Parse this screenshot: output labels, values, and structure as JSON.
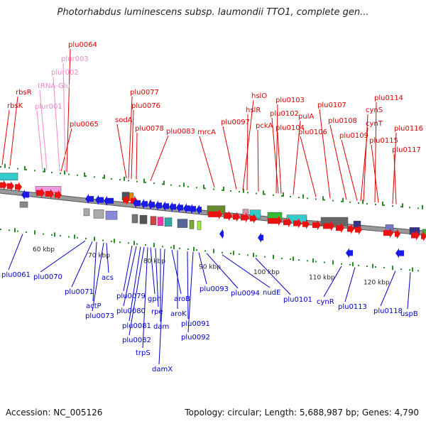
{
  "title": "Photorhabdus luminescens subsp. laumondii TTO1, complete gen...",
  "footer": {
    "accession": "Accession: NC_005126",
    "summary": "Topology: circular; Length: 5,688,987 bp; Genes: 4,790"
  },
  "colors": {
    "forward_label": "#dd0000",
    "reverse_label": "#0000cc",
    "rna_label": "#ee88cc",
    "backbone": "#888888"
  },
  "scale_labels": [
    "60 kbp",
    "70 kbp",
    "80 kbp",
    "90 kbp",
    "100 kbp",
    "110 kbp",
    "120 kbp"
  ],
  "forward_labels": [
    "rbsK",
    "rbsR",
    "plu0064",
    "plu0065",
    "sodA",
    "plu0077",
    "plu0076",
    "plu0078",
    "plu0083",
    "mrcA",
    "plu0097",
    "hslO",
    "hslR",
    "pckA",
    "plu0103",
    "plu0102",
    "plu0104",
    "pulA",
    "plu0106",
    "plu0107",
    "plu0108",
    "plu0109",
    "plu0114",
    "cynS",
    "cynT",
    "plu0115",
    "plu0116",
    "plu0117"
  ],
  "rna_labels": [
    "plur003",
    "plur002",
    "tRNA-Glu",
    "plur001"
  ],
  "reverse_labels": [
    "plu0061",
    "plu0070",
    "plu0071",
    "actP",
    "plu0073",
    "acs",
    "plu0079",
    "plu0080",
    "plu0081",
    "plu0082",
    "trpS",
    "gph",
    "rpe",
    "dam",
    "damX",
    "aroB",
    "aroK",
    "plu0091",
    "plu0092",
    "plu0093",
    "plu0094",
    "nudE",
    "plu0101",
    "cynR",
    "plu0113",
    "plu0118",
    "uspB"
  ]
}
